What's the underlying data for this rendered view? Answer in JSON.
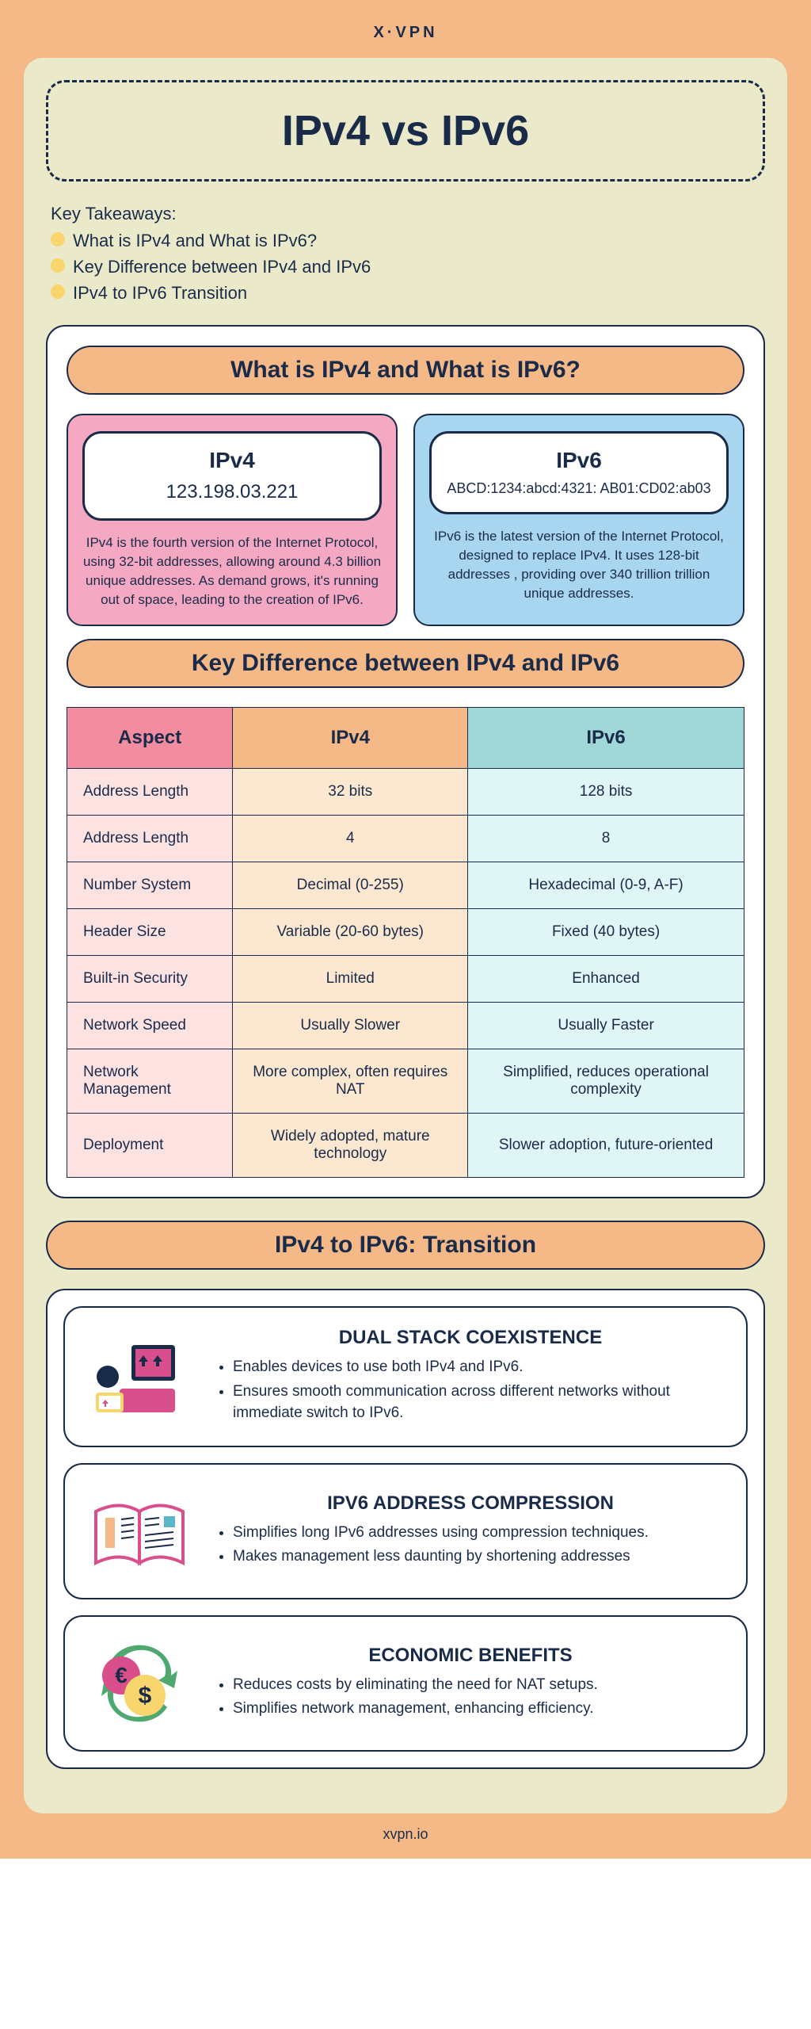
{
  "brand": "X·VPN",
  "footer": "xvpn.io",
  "colors": {
    "outer_bg": "#f5b988",
    "cream_bg": "#eaeacb",
    "dark": "#1a2b4a",
    "pink": "#f5a8c2",
    "blue": "#a8d5f0",
    "th_pink": "#f28ca0",
    "th_orange": "#f5b988",
    "th_teal": "#a0d8d8",
    "td_pink": "#fde2e2",
    "td_orange": "#fce8d0",
    "td_teal": "#e0f5f5",
    "bullet": "#f9d56e"
  },
  "title": "IPv4 vs IPv6",
  "takeaways": {
    "label": "Key Takeaways:",
    "items": [
      "What is IPv4 and What is IPv6?",
      "Key Difference between IPv4 and IPv6",
      "IPv4 to IPv6 Transition"
    ]
  },
  "section1": {
    "header": "What is IPv4 and What is IPv6?",
    "ipv4": {
      "title": "IPv4",
      "addr": "123.198.03.221",
      "desc": "IPv4 is the fourth version of the Internet Protocol, using 32-bit addresses, allowing around 4.3 billion unique addresses. As demand grows, it's running out of space, leading to the creation of IPv6."
    },
    "ipv6": {
      "title": "IPv6",
      "addr": "ABCD:1234:abcd:4321: AB01:CD02:ab03",
      "desc": "IPv6 is the latest version of the Internet Protocol, designed to replace IPv4. It uses 128-bit addresses , providing over 340 trillion trillion unique addresses."
    }
  },
  "section2": {
    "header": "Key Difference between IPv4 and IPv6",
    "columns": [
      "Aspect",
      "IPv4",
      "IPv6"
    ],
    "rows": [
      [
        "Address Length",
        "32 bits",
        "128 bits"
      ],
      [
        "Address Length",
        "4",
        "8"
      ],
      [
        "Number System",
        "Decimal (0-255)",
        "Hexadecimal (0-9, A-F)"
      ],
      [
        "Header Size",
        "Variable (20-60 bytes)",
        "Fixed (40 bytes)"
      ],
      [
        "Built-in Security",
        "Limited",
        "Enhanced"
      ],
      [
        "Network Speed",
        "Usually Slower",
        "Usually Faster"
      ],
      [
        "Network Management",
        "More complex, often requires NAT",
        "Simplified, reduces operational complexity"
      ],
      [
        "Deployment",
        "Widely adopted, mature technology",
        "Slower adoption, future-oriented"
      ]
    ]
  },
  "section3": {
    "header": "IPv4 to IPv6: Transition",
    "cards": [
      {
        "icon": "dual-stack",
        "title": "DUAL STACK COEXISTENCE",
        "bullets": [
          "Enables devices to use both IPv4 and IPv6.",
          "Ensures smooth communication across different networks without immediate switch to IPv6."
        ]
      },
      {
        "icon": "book",
        "title": "IPV6 ADDRESS COMPRESSION",
        "bullets": [
          "Simplifies long IPv6 addresses using compression techniques.",
          "Makes management less daunting by shortening addresses"
        ]
      },
      {
        "icon": "money",
        "title": "ECONOMIC BENEFITS",
        "bullets": [
          "Reduces costs by eliminating the need for NAT setups.",
          "Simplifies network management, enhancing efficiency."
        ]
      }
    ]
  }
}
